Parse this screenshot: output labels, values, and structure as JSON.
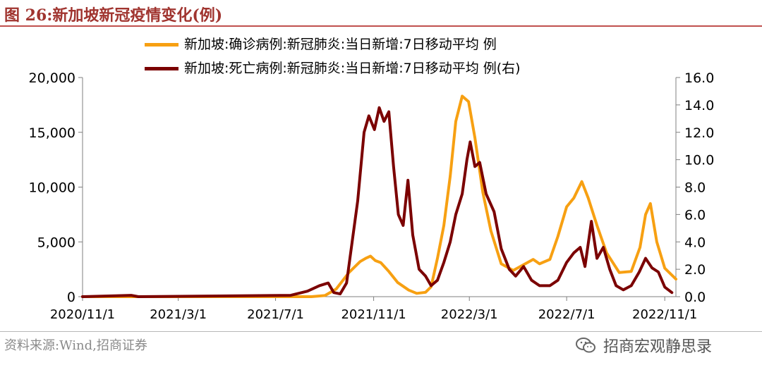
{
  "figure": {
    "title": "图 26:新加坡新冠疫情变化(例)",
    "source": "资料来源:Wind,招商证券",
    "watermark": "招商宏观静思录"
  },
  "colors": {
    "confirmed": "#f7a012",
    "deaths": "#7b0000",
    "title": "#a0342f"
  },
  "chart_data": {
    "type": "line",
    "title": "",
    "legend_position": "top",
    "grid": false,
    "x_ticks": [
      "2020/11/1",
      "2021/3/1",
      "2021/7/1",
      "2021/11/1",
      "2022/3/1",
      "2022/7/1",
      "2022/11/1"
    ],
    "xlim": [
      "2020/11/1",
      "2022/11/15"
    ],
    "y_left": {
      "ticks": [
        "20,000",
        "15,000",
        "10,000",
        "5,000",
        "0"
      ],
      "lim": [
        0,
        20000
      ]
    },
    "y_right": {
      "ticks": [
        "16.0",
        "14.0",
        "12.0",
        "10.0",
        "8.0",
        "6.0",
        "4.0",
        "2.0",
        "0.0"
      ],
      "lim": [
        0,
        16
      ]
    },
    "series": [
      {
        "name": "新加坡:确诊病例:新冠肺炎:当日新增:7日移动平均 例",
        "axis": "left",
        "points": [
          [
            "2020/11/1",
            0
          ],
          [
            "2021/8/15",
            0
          ],
          [
            "2021/9/1",
            100
          ],
          [
            "2021/9/15",
            700
          ],
          [
            "2021/10/1",
            2200
          ],
          [
            "2021/10/15",
            3200
          ],
          [
            "2021/10/22",
            3500
          ],
          [
            "2021/10/28",
            3700
          ],
          [
            "2021/11/3",
            3300
          ],
          [
            "2021/11/10",
            3100
          ],
          [
            "2021/11/20",
            2300
          ],
          [
            "2021/12/1",
            1300
          ],
          [
            "2021/12/15",
            600
          ],
          [
            "2021/12/25",
            300
          ],
          [
            "2022/1/5",
            400
          ],
          [
            "2022/1/12",
            900
          ],
          [
            "2022/1/20",
            3500
          ],
          [
            "2022/1/28",
            6500
          ],
          [
            "2022/2/5",
            11000
          ],
          [
            "2022/2/12",
            16000
          ],
          [
            "2022/2/20",
            18300
          ],
          [
            "2022/2/28",
            17800
          ],
          [
            "2022/3/8",
            14500
          ],
          [
            "2022/3/18",
            9500
          ],
          [
            "2022/3/28",
            6000
          ],
          [
            "2022/4/10",
            3000
          ],
          [
            "2022/4/25",
            2400
          ],
          [
            "2022/5/10",
            3000
          ],
          [
            "2022/5/20",
            3400
          ],
          [
            "2022/5/28",
            3000
          ],
          [
            "2022/6/10",
            3400
          ],
          [
            "2022/6/20",
            5500
          ],
          [
            "2022/7/1",
            8200
          ],
          [
            "2022/7/10",
            9000
          ],
          [
            "2022/7/20",
            10500
          ],
          [
            "2022/7/28",
            9000
          ],
          [
            "2022/8/8",
            6500
          ],
          [
            "2022/8/20",
            4000
          ],
          [
            "2022/9/5",
            2200
          ],
          [
            "2022/9/20",
            2300
          ],
          [
            "2022/10/1",
            4500
          ],
          [
            "2022/10/8",
            7500
          ],
          [
            "2022/10/14",
            8500
          ],
          [
            "2022/10/22",
            5000
          ],
          [
            "2022/11/1",
            2600
          ],
          [
            "2022/11/15",
            1600
          ]
        ]
      },
      {
        "name": "新加坡:死亡病例:新冠肺炎:当日新增:7日移动平均 例(右)",
        "axis": "right",
        "points": [
          [
            "2020/11/1",
            0
          ],
          [
            "2021/1/1",
            0.1
          ],
          [
            "2021/1/10",
            0
          ],
          [
            "2021/7/20",
            0.1
          ],
          [
            "2021/8/10",
            0.4
          ],
          [
            "2021/8/25",
            0.8
          ],
          [
            "2021/9/5",
            1.0
          ],
          [
            "2021/9/12",
            0.3
          ],
          [
            "2021/9/20",
            0.2
          ],
          [
            "2021/9/28",
            1.0
          ],
          [
            "2021/10/5",
            4.0
          ],
          [
            "2021/10/12",
            7.0
          ],
          [
            "2021/10/20",
            12.0
          ],
          [
            "2021/10/26",
            13.2
          ],
          [
            "2021/11/2",
            12.2
          ],
          [
            "2021/11/8",
            13.8
          ],
          [
            "2021/11/14",
            12.8
          ],
          [
            "2021/11/20",
            13.5
          ],
          [
            "2021/11/26",
            9.5
          ],
          [
            "2021/12/2",
            6.0
          ],
          [
            "2021/12/8",
            5.2
          ],
          [
            "2021/12/14",
            8.5
          ],
          [
            "2021/12/20",
            4.5
          ],
          [
            "2021/12/28",
            2.0
          ],
          [
            "2022/1/5",
            1.5
          ],
          [
            "2022/1/12",
            0.8
          ],
          [
            "2022/1/20",
            1.2
          ],
          [
            "2022/1/28",
            2.5
          ],
          [
            "2022/2/5",
            4.0
          ],
          [
            "2022/2/12",
            6.0
          ],
          [
            "2022/2/20",
            7.5
          ],
          [
            "2022/2/26",
            10.0
          ],
          [
            "2022/3/2",
            11.3
          ],
          [
            "2022/3/8",
            9.5
          ],
          [
            "2022/3/14",
            9.8
          ],
          [
            "2022/3/22",
            7.5
          ],
          [
            "2022/4/1",
            6.2
          ],
          [
            "2022/4/10",
            3.5
          ],
          [
            "2022/4/20",
            2.0
          ],
          [
            "2022/4/28",
            1.5
          ],
          [
            "2022/5/8",
            2.2
          ],
          [
            "2022/5/18",
            1.2
          ],
          [
            "2022/5/28",
            0.8
          ],
          [
            "2022/6/10",
            0.8
          ],
          [
            "2022/6/20",
            1.2
          ],
          [
            "2022/7/1",
            2.5
          ],
          [
            "2022/7/10",
            3.2
          ],
          [
            "2022/7/18",
            3.6
          ],
          [
            "2022/7/24",
            2.2
          ],
          [
            "2022/8/1",
            5.5
          ],
          [
            "2022/8/8",
            2.8
          ],
          [
            "2022/8/16",
            3.6
          ],
          [
            "2022/8/24",
            2.0
          ],
          [
            "2022/9/1",
            0.8
          ],
          [
            "2022/9/10",
            0.5
          ],
          [
            "2022/9/20",
            0.8
          ],
          [
            "2022/9/30",
            1.8
          ],
          [
            "2022/10/8",
            2.8
          ],
          [
            "2022/10/16",
            2.1
          ],
          [
            "2022/10/24",
            1.8
          ],
          [
            "2022/11/1",
            0.7
          ],
          [
            "2022/11/10",
            0.3
          ]
        ]
      }
    ]
  }
}
